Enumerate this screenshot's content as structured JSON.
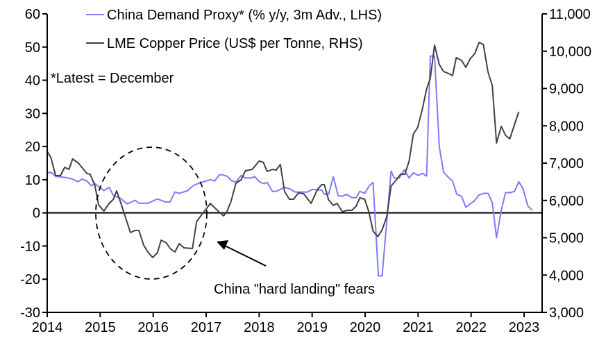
{
  "chart_data": {
    "type": "line",
    "title": "",
    "xlabel": "",
    "ylabel_left": "",
    "ylabel_right": "",
    "xlim": [
      2014,
      2023.34
    ],
    "ylim_left": [
      -30,
      60
    ],
    "ylim_right": [
      3000,
      11000
    ],
    "x_ticks": [
      "2014",
      "2015",
      "2016",
      "2017",
      "2018",
      "2019",
      "2020",
      "2021",
      "2022",
      "2023"
    ],
    "y_ticks_left": [
      "60",
      "50",
      "40",
      "30",
      "20",
      "10",
      "0",
      "-10",
      "-20",
      "-30"
    ],
    "y_ticks_right": [
      "11,000",
      "10,000",
      "9,000",
      "8,000",
      "7,000",
      "6,000",
      "5,000",
      "4,000",
      "3,000"
    ],
    "grid": false,
    "legend_position": "top",
    "note": "*Latest = December",
    "annotation": "China \"hard landing\" fears",
    "series": [
      {
        "name": "China Demand Proxy* (% y/y, 3m Adv., LHS)",
        "axis": "left",
        "color": "#7b7bff",
        "points": [
          [
            2014.0,
            12
          ],
          [
            2014.07,
            12.3
          ],
          [
            2014.16,
            11
          ],
          [
            2014.33,
            10.7
          ],
          [
            2014.46,
            10.3
          ],
          [
            2014.58,
            9.4
          ],
          [
            2014.66,
            10.2
          ],
          [
            2014.75,
            9.6
          ],
          [
            2014.83,
            8.2
          ],
          [
            2014.9,
            8.8
          ],
          [
            2015.07,
            6.7
          ],
          [
            2015.17,
            7.7
          ],
          [
            2015.25,
            5.2
          ],
          [
            2015.38,
            4.4
          ],
          [
            2015.51,
            2.7
          ],
          [
            2015.66,
            3.8
          ],
          [
            2015.73,
            2.9
          ],
          [
            2015.9,
            2.9
          ],
          [
            2016.08,
            4.2
          ],
          [
            2016.23,
            3.3
          ],
          [
            2016.32,
            3.3
          ],
          [
            2016.41,
            6.3
          ],
          [
            2016.49,
            5.9
          ],
          [
            2016.65,
            6.7
          ],
          [
            2016.75,
            8.2
          ],
          [
            2016.87,
            9
          ],
          [
            2016.95,
            9.4
          ],
          [
            2017.08,
            10
          ],
          [
            2017.16,
            9.6
          ],
          [
            2017.25,
            11.5
          ],
          [
            2017.3,
            11.5
          ],
          [
            2017.39,
            11.1
          ],
          [
            2017.47,
            9.8
          ],
          [
            2017.56,
            9.2
          ],
          [
            2017.66,
            11.3
          ],
          [
            2017.74,
            10.5
          ],
          [
            2017.83,
            10.5
          ],
          [
            2017.92,
            10.9
          ],
          [
            2018.0,
            9.4
          ],
          [
            2018.09,
            8.8
          ],
          [
            2018.15,
            9.2
          ],
          [
            2018.25,
            6.5
          ],
          [
            2018.32,
            6.5
          ],
          [
            2018.48,
            7.7
          ],
          [
            2018.57,
            7.3
          ],
          [
            2018.68,
            6.3
          ],
          [
            2018.84,
            6.3
          ],
          [
            2018.91,
            6.3
          ],
          [
            2019.01,
            7.1
          ],
          [
            2019.1,
            6.9
          ],
          [
            2019.18,
            6.9
          ],
          [
            2019.23,
            5.6
          ],
          [
            2019.31,
            5.6
          ],
          [
            2019.4,
            10.9
          ],
          [
            2019.49,
            5.2
          ],
          [
            2019.57,
            5
          ],
          [
            2019.65,
            5.6
          ],
          [
            2019.75,
            4.6
          ],
          [
            2019.83,
            4.6
          ],
          [
            2019.9,
            6.5
          ],
          [
            2019.99,
            5.9
          ],
          [
            2020.08,
            8.2
          ],
          [
            2020.15,
            9.2
          ],
          [
            2020.25,
            -19
          ],
          [
            2020.32,
            -19
          ],
          [
            2020.49,
            12.6
          ],
          [
            2020.55,
            10.5
          ],
          [
            2020.64,
            10.5
          ],
          [
            2020.74,
            13
          ],
          [
            2020.83,
            10.5
          ],
          [
            2020.91,
            12.1
          ],
          [
            2021.0,
            11.3
          ],
          [
            2021.08,
            11.9
          ],
          [
            2021.16,
            11.1
          ],
          [
            2021.23,
            47.3
          ],
          [
            2021.31,
            47.3
          ],
          [
            2021.4,
            19.9
          ],
          [
            2021.48,
            12.3
          ],
          [
            2021.56,
            10.9
          ],
          [
            2021.65,
            9.6
          ],
          [
            2021.73,
            5.6
          ],
          [
            2021.82,
            5
          ],
          [
            2021.9,
            1.7
          ],
          [
            2021.98,
            2.7
          ],
          [
            2022.06,
            3.6
          ],
          [
            2022.15,
            5.4
          ],
          [
            2022.24,
            5.9
          ],
          [
            2022.32,
            5.9
          ],
          [
            2022.4,
            3.1
          ],
          [
            2022.48,
            -7.5
          ],
          [
            2022.57,
            0.8
          ],
          [
            2022.65,
            6.1
          ],
          [
            2022.74,
            6.1
          ],
          [
            2022.82,
            6.5
          ],
          [
            2022.9,
            9.4
          ],
          [
            2022.98,
            7.3
          ],
          [
            2023.07,
            2.1
          ],
          [
            2023.15,
            0.8
          ]
        ]
      },
      {
        "name": "LME Copper Price (US$ per Tonne, RHS)",
        "axis": "right",
        "color": "#404040",
        "points": [
          [
            2014.0,
            7316
          ],
          [
            2014.07,
            7149
          ],
          [
            2014.16,
            6665
          ],
          [
            2014.25,
            6665
          ],
          [
            2014.33,
            6888
          ],
          [
            2014.41,
            6833
          ],
          [
            2014.48,
            7112
          ],
          [
            2014.59,
            7000
          ],
          [
            2014.75,
            6721
          ],
          [
            2014.81,
            6702
          ],
          [
            2014.9,
            6405
          ],
          [
            2014.97,
            5884
          ],
          [
            2015.07,
            5716
          ],
          [
            2015.17,
            5921
          ],
          [
            2015.25,
            6033
          ],
          [
            2015.31,
            6256
          ],
          [
            2015.4,
            5884
          ],
          [
            2015.57,
            5140
          ],
          [
            2015.66,
            5195
          ],
          [
            2015.73,
            5195
          ],
          [
            2015.82,
            4805
          ],
          [
            2015.9,
            4619
          ],
          [
            2015.99,
            4470
          ],
          [
            2016.08,
            4600
          ],
          [
            2016.15,
            4935
          ],
          [
            2016.25,
            4860
          ],
          [
            2016.32,
            4712
          ],
          [
            2016.41,
            4619
          ],
          [
            2016.49,
            4842
          ],
          [
            2016.58,
            4730
          ],
          [
            2016.74,
            4712
          ],
          [
            2016.82,
            5437
          ],
          [
            2016.94,
            5660
          ],
          [
            2017.08,
            5921
          ],
          [
            2017.13,
            5847
          ],
          [
            2017.24,
            5698
          ],
          [
            2017.33,
            5586
          ],
          [
            2017.39,
            5698
          ],
          [
            2017.47,
            5977
          ],
          [
            2017.56,
            6460
          ],
          [
            2017.66,
            6553
          ],
          [
            2017.74,
            6795
          ],
          [
            2017.87,
            6833
          ],
          [
            2018.0,
            7056
          ],
          [
            2018.08,
            7019
          ],
          [
            2018.15,
            6777
          ],
          [
            2018.25,
            6833
          ],
          [
            2018.32,
            6814
          ],
          [
            2018.4,
            6963
          ],
          [
            2018.48,
            6237
          ],
          [
            2018.57,
            6033
          ],
          [
            2018.65,
            6033
          ],
          [
            2018.74,
            6200
          ],
          [
            2018.84,
            6181
          ],
          [
            2018.98,
            5921
          ],
          [
            2019.1,
            6293
          ],
          [
            2019.18,
            6423
          ],
          [
            2019.23,
            6423
          ],
          [
            2019.31,
            6014
          ],
          [
            2019.4,
            5865
          ],
          [
            2019.47,
            5921
          ],
          [
            2019.57,
            5698
          ],
          [
            2019.66,
            5735
          ],
          [
            2019.75,
            5735
          ],
          [
            2019.83,
            5847
          ],
          [
            2019.9,
            6070
          ],
          [
            2019.99,
            6033
          ],
          [
            2020.07,
            5698
          ],
          [
            2020.15,
            5177
          ],
          [
            2020.24,
            5028
          ],
          [
            2020.32,
            5214
          ],
          [
            2020.41,
            5567
          ],
          [
            2020.49,
            6386
          ],
          [
            2020.58,
            6535
          ],
          [
            2020.67,
            6702
          ],
          [
            2020.75,
            6702
          ],
          [
            2020.83,
            7056
          ],
          [
            2020.91,
            7781
          ],
          [
            2020.99,
            7949
          ],
          [
            2021.08,
            8451
          ],
          [
            2021.16,
            8991
          ],
          [
            2021.23,
            9270
          ],
          [
            2021.31,
            10163
          ],
          [
            2021.4,
            9642
          ],
          [
            2021.48,
            9456
          ],
          [
            2021.58,
            9400
          ],
          [
            2021.65,
            9344
          ],
          [
            2021.72,
            9828
          ],
          [
            2021.82,
            9753
          ],
          [
            2021.9,
            9567
          ],
          [
            2021.98,
            9791
          ],
          [
            2022.07,
            9940
          ],
          [
            2022.15,
            10237
          ],
          [
            2022.23,
            10181
          ],
          [
            2022.32,
            9437
          ],
          [
            2022.4,
            9084
          ],
          [
            2022.48,
            7540
          ],
          [
            2022.57,
            7986
          ],
          [
            2022.65,
            7744
          ],
          [
            2022.73,
            7651
          ],
          [
            2022.9,
            8377
          ]
        ]
      }
    ]
  }
}
